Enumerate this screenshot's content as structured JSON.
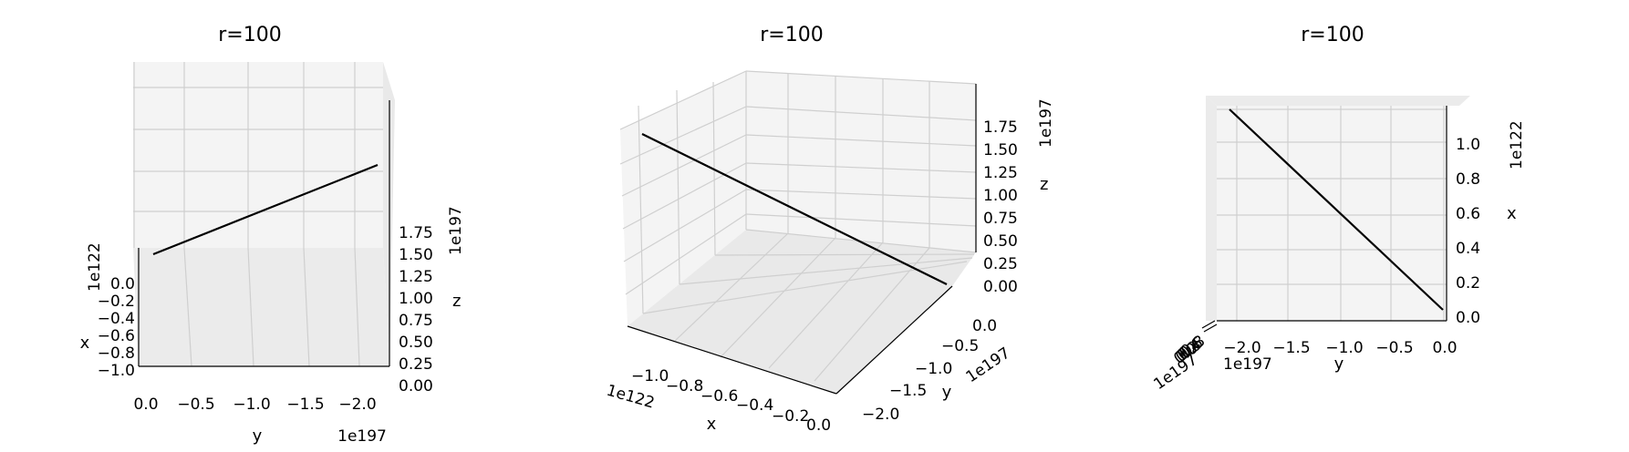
{
  "chart_data": [
    {
      "type": "line",
      "projection": "3d",
      "title": "r=100",
      "x": [
        -1.0,
        0.0
      ],
      "y": [
        0.0,
        -2.0
      ],
      "z": [
        0.0,
        1.9
      ],
      "x_scale_label": "1e122",
      "y_scale_label": "1e197",
      "z_scale_label": "1e197",
      "xlabel": "x",
      "ylabel": "y",
      "zlabel": "z",
      "xticks": [
        "0.0",
        "−0.2",
        "−0.4",
        "−0.6",
        "−0.8",
        "−1.0"
      ],
      "yticks": [
        "0.0",
        "−0.5",
        "−1.0",
        "−1.5",
        "−2.0"
      ],
      "zticks": [
        "0.00",
        "0.25",
        "0.50",
        "0.75",
        "1.00",
        "1.25",
        "1.50",
        "1.75"
      ],
      "grid": true
    },
    {
      "type": "line",
      "projection": "3d",
      "title": "r=100",
      "x": [
        -1.0,
        0.0
      ],
      "y": [
        0.0,
        -2.0
      ],
      "z": [
        1.9,
        0.0
      ],
      "x_scale_label": "1e122",
      "y_scale_label": "1e197",
      "z_scale_label": "1e197",
      "xlabel": "x",
      "ylabel": "y",
      "zlabel": "z",
      "xticks": [
        "−1.0",
        "−0.8",
        "−0.6",
        "−0.4",
        "−0.2",
        "0.0"
      ],
      "yticks": [
        "0.0",
        "−0.5",
        "−1.0",
        "−1.5",
        "−2.0"
      ],
      "zticks": [
        "0.00",
        "0.25",
        "0.50",
        "0.75",
        "1.00",
        "1.25",
        "1.50",
        "1.75"
      ],
      "grid": true
    },
    {
      "type": "line",
      "projection": "3d",
      "title": "r=100",
      "x": [
        1.1,
        0.0
      ],
      "y": [
        -2.0,
        0.0
      ],
      "x_scale_label": "1e122",
      "y_scale_label": "1e197",
      "xlabel": "x",
      "ylabel": "y",
      "xticks": [
        "0.0",
        "0.2",
        "0.4",
        "0.6",
        "0.8",
        "1.0"
      ],
      "yticks": [
        "−2.0",
        "−1.5",
        "−1.0",
        "−0.5",
        "0.0"
      ],
      "grid": true
    }
  ]
}
